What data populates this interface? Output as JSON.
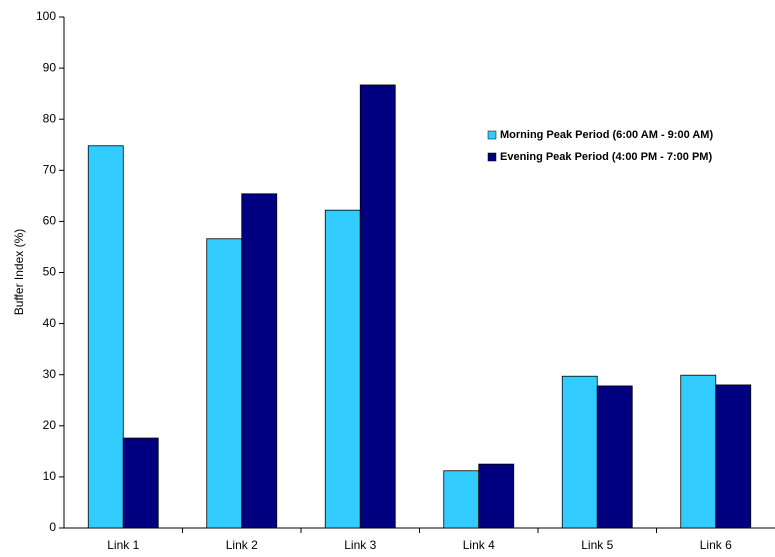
{
  "chart_data": {
    "type": "bar",
    "y_label": "Buffer Index (%)",
    "categories": [
      "Link 1",
      "Link 2",
      "Link 3",
      "Link 4",
      "Link 5",
      "Link 6"
    ],
    "series": [
      {
        "name": "Morning Peak Period (6:00 AM - 9:00 AM)",
        "color": "#33ccff",
        "values": [
          74.8,
          56.6,
          62.2,
          11.2,
          29.7,
          29.9
        ]
      },
      {
        "name": "Evening Peak Period (4:00 PM - 7:00 PM)",
        "color": "#000080",
        "values": [
          17.6,
          65.4,
          86.7,
          12.5,
          27.8,
          28.0
        ]
      }
    ],
    "ylim": [
      0,
      100
    ],
    "yticks": [
      0,
      10,
      20,
      30,
      40,
      50,
      60,
      70,
      80,
      90,
      100
    ],
    "grid": false,
    "legend": "upper right"
  }
}
